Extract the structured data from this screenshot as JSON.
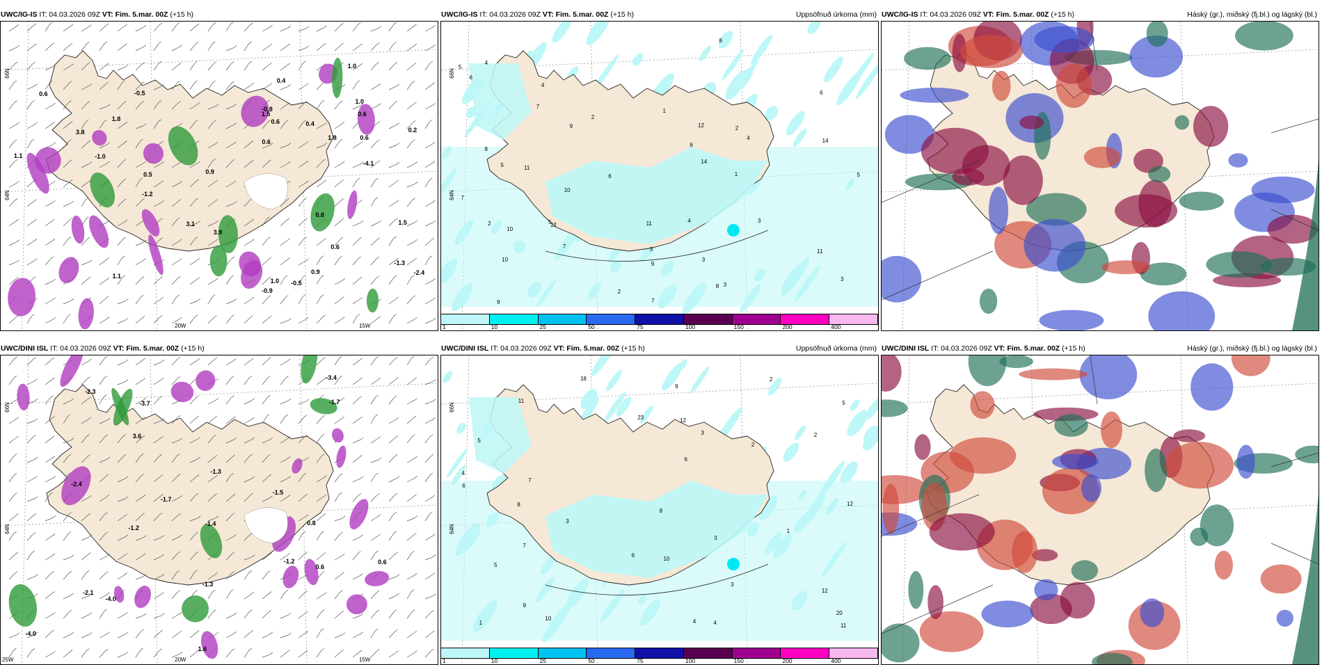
{
  "panels": [
    {
      "id": "igis-temp",
      "model_label": "UWC/IG-IS",
      "it_label": "IT: 04.03.2026 09Z",
      "vt_prefix": "VT:",
      "vt_value": "Fim. 5.mar. 00Z",
      "lead": "(+15 h)",
      "right_title": "",
      "axis_labels": [
        "66N",
        "64N",
        "20W",
        "15W"
      ],
      "value_labels": [
        "3.9",
        "1.5",
        "3.8",
        "0.6",
        "0.6",
        "0.6",
        "-0.9",
        "0.4",
        "-0.5",
        "0.5",
        "-1.2",
        "-4.1",
        "1.1",
        "-2.4",
        "0.6",
        "0.4",
        "0.2",
        "-0.8",
        "0.6",
        "0.6",
        "0.9",
        "1.0",
        "1.8",
        "1.8",
        "0.8",
        "-1.0",
        "1.0",
        "0.9",
        "1.0",
        "1.1",
        "-1.3",
        "3.1",
        "1.5",
        "-0.5"
      ]
    },
    {
      "id": "igis-precip",
      "model_label": "UWC/IG-IS",
      "it_label": "IT: 04.03.2026 09Z",
      "vt_prefix": "VT:",
      "vt_value": "Fim. 5.mar. 00Z",
      "lead": "(+15 h)",
      "right_title": "Uppsöfnuð úrkoma (mm)",
      "axis_labels": [
        "66N",
        "64N"
      ],
      "value_labels": [
        "5",
        "3",
        "6",
        "7",
        "12",
        "11",
        "10",
        "9",
        "8",
        "14",
        "11",
        "2",
        "3",
        "6",
        "4",
        "3",
        "2",
        "1",
        "7",
        "6",
        "5",
        "4",
        "9",
        "11",
        "10",
        "14",
        "8",
        "5",
        "7",
        "3",
        "2",
        "12",
        "10",
        "4",
        "6",
        "1",
        "2",
        "3",
        "5",
        "8",
        "9",
        "7",
        "4"
      ],
      "legend_ticks": [
        "1",
        "10",
        "25",
        "50",
        "75",
        "100",
        "150",
        "200",
        "400"
      ],
      "legend_colors": [
        "#bdf7f7",
        "#00f0f0",
        "#00c2f0",
        "#2a6af0",
        "#1010a8",
        "#5a0050",
        "#a0008f",
        "#ff00c0",
        "#f7b8f0"
      ]
    },
    {
      "id": "igis-cloud",
      "model_label": "UWC/IG-IS",
      "it_label": "IT: 04.03.2026 09Z",
      "vt_prefix": "VT:",
      "vt_value": "Fim. 5.mar. 00Z",
      "lead": "(+15 h)",
      "right_title": "Háský (gr.), miðský (fj.bl.) og lágský (bl.)"
    },
    {
      "id": "dini-temp",
      "model_label": "UWC/DINI ISL",
      "it_label": "IT: 04.03.2026 09Z",
      "vt_prefix": "VT:",
      "vt_value": "Fim. 5.mar. 00Z",
      "lead": "(+15 h)",
      "right_title": "",
      "axis_labels": [
        "66N",
        "64N",
        "25W",
        "20W",
        "15W"
      ],
      "value_labels": [
        "-1.3",
        "-4.0",
        "-1.2",
        "-1.7",
        "-1.5",
        "-1.3",
        "3.6",
        "-4.0",
        "0.6",
        "-1.7",
        "-2.4",
        "-3.4",
        "-3.7",
        "0.8",
        "0.6",
        "-1.4",
        "-1.2",
        "1.6",
        "-2.3",
        "-2.1"
      ]
    },
    {
      "id": "dini-precip",
      "model_label": "UWC/DINI ISL",
      "it_label": "IT: 04.03.2026 09Z",
      "vt_prefix": "VT:",
      "vt_value": "Fim. 5.mar. 00Z",
      "lead": "(+15 h)",
      "right_title": "Uppsöfnuð úrkoma (mm)",
      "axis_labels": [
        "66N",
        "64N"
      ],
      "value_labels": [
        "5",
        "8",
        "3",
        "4",
        "18",
        "23",
        "20",
        "12",
        "9",
        "7",
        "6",
        "2",
        "1",
        "3",
        "4",
        "5",
        "10",
        "11",
        "8",
        "9",
        "7",
        "6",
        "12",
        "3",
        "2",
        "1",
        "4",
        "5",
        "6",
        "10",
        "12",
        "11",
        "3",
        "2"
      ],
      "legend_ticks": [
        "1",
        "10",
        "25",
        "50",
        "75",
        "100",
        "150",
        "200",
        "400"
      ],
      "legend_colors": [
        "#bdf7f7",
        "#00f0f0",
        "#00c2f0",
        "#2a6af0",
        "#1010a8",
        "#5a0050",
        "#a0008f",
        "#ff00c0",
        "#f7b8f0"
      ]
    },
    {
      "id": "dini-cloud",
      "model_label": "UWC/DINI ISL",
      "it_label": "IT: 04.03.2026 09Z",
      "vt_prefix": "VT:",
      "vt_value": "Fim. 5.mar. 00Z",
      "lead": "(+15 h)",
      "right_title": "Háský (gr.), miðský (fj.bl.) og lágský (bl.)"
    }
  ],
  "colors": {
    "land": "#f6e8d6",
    "sea": "#ffffff",
    "precip_light": "#bdf7f7",
    "precip_mid": "#00e8f0",
    "temp_purple": "#b03cc0",
    "temp_green": "#2e9a3a",
    "high_cloud": "#1f6e57",
    "mid_cloud": "#8a1040",
    "low_cloud": "#3a4fd0",
    "mid_cloud_red": "#d04a3a"
  }
}
